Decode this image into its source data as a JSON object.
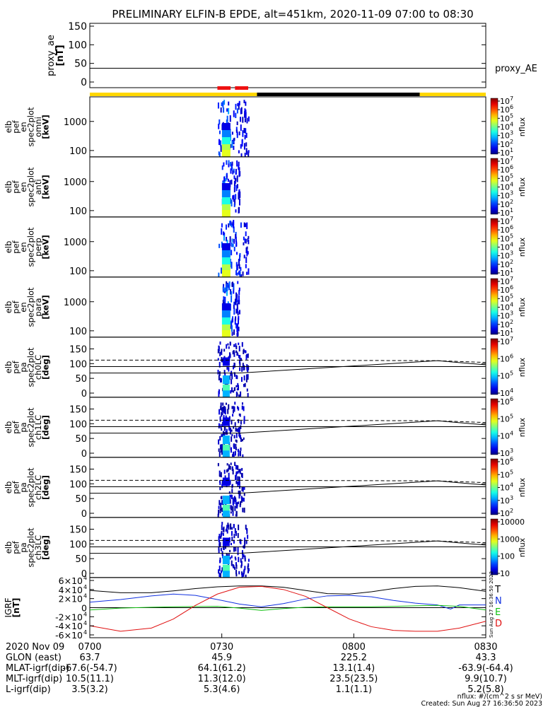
{
  "title": "PRELIMINARY ELFIN-B EPDE, alt=451km, 2020-11-09 07:00 to 08:30",
  "colors": {
    "sunlight": "#ffd700",
    "eclipse": "#000000",
    "science_zone": "#ee1111",
    "trace_T": "#000000",
    "trace_N": "#1030e0",
    "trace_E": "#10c010",
    "trace_D": "#e01010"
  },
  "chart_data": [
    {
      "type": "line",
      "id": "proxy_ae",
      "ylabel": "proxy_ae [nT]",
      "ylim": [
        0,
        150
      ],
      "yticks": [
        "0",
        "50",
        "100",
        "150"
      ],
      "series": [
        {
          "name": "proxy_AE",
          "x": [
            "07:00",
            "08:30"
          ],
          "values": [
            37,
            37
          ]
        }
      ]
    },
    {
      "type": "heatmap",
      "id": "en_omni",
      "ylabel": [
        "elb",
        "pef",
        "en",
        "spec2plot",
        "omni",
        "[keV]"
      ],
      "yscale": "log",
      "ylim": [
        60,
        7000
      ],
      "yticks": [
        "100",
        "1000"
      ],
      "colorbar": {
        "label": "nflux",
        "ticks": [
          "10",
          "10",
          "10",
          "10",
          "10",
          "10",
          "10"
        ],
        "exponents": [
          "1",
          "2",
          "3",
          "4",
          "5",
          "6",
          "7"
        ]
      },
      "activity": [
        {
          "start": "07:29",
          "end": "07:36",
          "peak": "07:31"
        }
      ]
    },
    {
      "type": "heatmap",
      "id": "en_anti",
      "ylabel": [
        "elb",
        "pef",
        "en",
        "spec2plot",
        "anti",
        "[keV]"
      ],
      "yscale": "log",
      "ylim": [
        60,
        7000
      ],
      "yticks": [
        "100",
        "1000"
      ],
      "colorbar": {
        "label": "nflux",
        "ticks": [
          "10",
          "10",
          "10",
          "10",
          "10",
          "10",
          "10"
        ],
        "exponents": [
          "1",
          "2",
          "3",
          "4",
          "5",
          "6",
          "7"
        ]
      },
      "activity": [
        {
          "start": "07:30",
          "end": "07:34",
          "peak": "07:31"
        }
      ]
    },
    {
      "type": "heatmap",
      "id": "en_perp",
      "ylabel": [
        "elb",
        "pef",
        "en",
        "spec2plot",
        "perp",
        "[keV]"
      ],
      "yscale": "log",
      "ylim": [
        60,
        7000
      ],
      "yticks": [
        "100",
        "1000"
      ],
      "colorbar": {
        "label": "nflux",
        "ticks": [
          "10",
          "10",
          "10",
          "10",
          "10",
          "10",
          "10"
        ],
        "exponents": [
          "1",
          "2",
          "3",
          "4",
          "5",
          "6",
          "7"
        ]
      },
      "activity": [
        {
          "start": "07:29",
          "end": "07:36",
          "peak": "07:31"
        }
      ]
    },
    {
      "type": "heatmap",
      "id": "en_para",
      "ylabel": [
        "elb",
        "pef",
        "en",
        "spec2plot",
        "para",
        "[keV]"
      ],
      "yscale": "log",
      "ylim": [
        60,
        7000
      ],
      "yticks": [
        "100",
        "1000"
      ],
      "colorbar": {
        "label": "nflux",
        "ticks": [
          "10",
          "10",
          "10",
          "10",
          "10",
          "10",
          "10"
        ],
        "exponents": [
          "1",
          "2",
          "3",
          "4",
          "5",
          "6",
          "7"
        ]
      },
      "activity": [
        {
          "start": "07:30",
          "end": "07:34",
          "peak": "07:31"
        }
      ]
    },
    {
      "type": "heatmap",
      "id": "ch0LC",
      "ylabel": [
        "elb",
        "pef",
        "pa",
        "spec2plot",
        "ch0LC",
        "[deg]"
      ],
      "ylim": [
        0,
        180
      ],
      "yticks": [
        "0",
        "50",
        "100",
        "150"
      ],
      "lines": {
        "solid": [
          [
            "07:34",
            68
          ],
          [
            "08:19",
            110
          ],
          [
            "08:30",
            96
          ]
        ],
        "dashed": [
          [
            "07:34",
            112
          ],
          [
            "08:19",
            110
          ],
          [
            "08:30",
            104
          ]
        ],
        "flat": [
          90
        ]
      },
      "colorbar": {
        "label": "nflux",
        "ticks": [
          "10",
          "10",
          "10",
          "10"
        ],
        "exponents": [
          "4",
          "5",
          "6",
          "7"
        ]
      },
      "activity": [
        {
          "start": "07:29",
          "end": "07:36",
          "peak": "07:31"
        }
      ]
    },
    {
      "type": "heatmap",
      "id": "ch1LC",
      "ylabel": [
        "elb",
        "pef",
        "pa",
        "spec2plot",
        "ch1LC",
        "[deg]"
      ],
      "ylim": [
        0,
        180
      ],
      "yticks": [
        "0",
        "50",
        "100",
        "150"
      ],
      "lines": {
        "solid": [
          [
            "07:34",
            68
          ],
          [
            "08:19",
            110
          ],
          [
            "08:30",
            96
          ]
        ],
        "dashed": [
          [
            "07:34",
            112
          ],
          [
            "08:19",
            110
          ],
          [
            "08:30",
            104
          ]
        ],
        "flat": [
          90
        ]
      },
      "colorbar": {
        "label": "nflux",
        "ticks": [
          "10",
          "10",
          "10",
          "10"
        ],
        "exponents": [
          "3",
          "4",
          "5",
          "6"
        ]
      },
      "activity": [
        {
          "start": "07:29",
          "end": "07:35",
          "peak": "07:31"
        }
      ]
    },
    {
      "type": "heatmap",
      "id": "ch2LC",
      "ylabel": [
        "elb",
        "pef",
        "pa",
        "spec2plot",
        "ch2LC",
        "[deg]"
      ],
      "ylim": [
        0,
        180
      ],
      "yticks": [
        "0",
        "50",
        "100",
        "150"
      ],
      "lines": {
        "solid": [
          [
            "07:34",
            68
          ],
          [
            "08:19",
            110
          ],
          [
            "08:30",
            96
          ]
        ],
        "dashed": [
          [
            "07:34",
            112
          ],
          [
            "08:19",
            110
          ],
          [
            "08:30",
            104
          ]
        ],
        "flat": [
          90
        ]
      },
      "colorbar": {
        "label": "nflux",
        "ticks": [
          "10",
          "10",
          "10",
          "10",
          "10"
        ],
        "exponents": [
          "2",
          "3",
          "4",
          "5",
          "6"
        ]
      },
      "activity": [
        {
          "start": "07:29",
          "end": "07:35",
          "peak": "07:31"
        }
      ]
    },
    {
      "type": "heatmap",
      "id": "ch3LC",
      "ylabel": [
        "elb",
        "pef",
        "pa",
        "spec2plot",
        "ch3LC",
        "[deg]"
      ],
      "ylim": [
        0,
        180
      ],
      "yticks": [
        "0",
        "50",
        "100",
        "150"
      ],
      "lines": {
        "solid": [
          [
            "07:34",
            68
          ],
          [
            "08:19",
            110
          ],
          [
            "08:30",
            96
          ]
        ],
        "dashed": [
          [
            "07:34",
            112
          ],
          [
            "08:19",
            110
          ],
          [
            "08:30",
            104
          ]
        ],
        "flat": [
          90
        ]
      },
      "colorbar": {
        "label": "nflux",
        "ticks": [
          "10",
          "100",
          "1000",
          "10000"
        ]
      },
      "activity": [
        {
          "start": "07:29",
          "end": "07:36",
          "peak": "07:31"
        }
      ]
    },
    {
      "type": "line",
      "id": "igrf",
      "ylabel": [
        "IGRF",
        "[nT]"
      ],
      "ylim": [
        -60000,
        60000
      ],
      "yticks": [
        {
          "m": "-6",
          "e": "4"
        },
        {
          "m": "-4",
          "e": "4"
        },
        {
          "m": "-2",
          "e": "4"
        },
        {
          "m": "0",
          "e": ""
        },
        {
          "m": "2",
          "e": "4"
        },
        {
          "m": "4",
          "e": "4"
        },
        {
          "m": "6",
          "e": "4"
        }
      ],
      "series": [
        {
          "name": "T",
          "x": [
            "07:00",
            "07:07",
            "07:14",
            "07:19",
            "07:24",
            "07:29",
            "07:34",
            "07:39",
            "07:44",
            "07:49",
            "07:54",
            "07:59",
            "08:04",
            "08:09",
            "08:14",
            "08:19",
            "08:24",
            "08:30"
          ],
          "values": [
            38000,
            33000,
            33000,
            37000,
            42000,
            46000,
            48000,
            48000,
            45000,
            38000,
            31000,
            30000,
            35000,
            42000,
            47000,
            48000,
            44000,
            36000
          ]
        },
        {
          "name": "N",
          "x": [
            "07:00",
            "07:07",
            "07:14",
            "07:19",
            "07:24",
            "07:29",
            "07:34",
            "07:39",
            "07:44",
            "07:49",
            "07:54",
            "07:59",
            "08:04",
            "08:09",
            "08:14",
            "08:19",
            "08:22",
            "08:24",
            "08:30"
          ],
          "values": [
            12000,
            18000,
            26000,
            30000,
            27000,
            18000,
            8000,
            2000,
            9000,
            19000,
            26000,
            27000,
            24000,
            16000,
            10000,
            6000,
            -3000,
            6000,
            6000
          ]
        },
        {
          "name": "E",
          "x": [
            "07:00",
            "07:07",
            "07:14",
            "07:19",
            "07:24",
            "07:29",
            "07:34",
            "07:39",
            "07:44",
            "07:49",
            "07:54",
            "07:59",
            "08:04",
            "08:09",
            "08:14",
            "08:19",
            "08:24",
            "08:30"
          ],
          "values": [
            -5000,
            -1000,
            1000,
            2000,
            2500,
            3000,
            -1000,
            -6000,
            -2000,
            1000,
            2000,
            2000,
            2000,
            3000,
            4000,
            5000,
            3000,
            -5000
          ]
        },
        {
          "name": "D",
          "x": [
            "07:00",
            "07:07",
            "07:14",
            "07:19",
            "07:24",
            "07:29",
            "07:34",
            "07:39",
            "07:44",
            "07:49",
            "07:54",
            "07:59",
            "08:04",
            "08:09",
            "08:14",
            "08:19",
            "08:24",
            "08:30"
          ],
          "values": [
            -40000,
            -52000,
            -45000,
            -25000,
            5000,
            30000,
            45000,
            47000,
            40000,
            25000,
            0,
            -25000,
            -42000,
            -50000,
            -52000,
            -52000,
            -45000,
            -30000
          ]
        }
      ]
    }
  ],
  "bars": {
    "sunlight_eclipse": [
      {
        "start": "07:00",
        "end": "07:38",
        "state": "sunlight"
      },
      {
        "start": "07:38",
        "end": "08:15",
        "state": "eclipse"
      },
      {
        "start": "08:15",
        "end": "08:30",
        "state": "sunlight"
      }
    ],
    "science_zones": [
      {
        "start": "07:29",
        "end": "07:32"
      },
      {
        "start": "07:33",
        "end": "07:34"
      },
      {
        "start": "07:34",
        "end": "07:36"
      }
    ]
  },
  "side_labels": {
    "proxy": "proxy_AE",
    "igrf": [
      "T",
      "N",
      "E",
      "D"
    ],
    "created_vertical": "Sun Aug 27 16:36:50 2023"
  },
  "xaxis": {
    "date": "2020 Nov 09",
    "ticks": [
      "0700",
      "0730",
      "0800",
      "0830"
    ],
    "rows": [
      {
        "label": "GLON (east)",
        "values": [
          "63.7",
          "45.9",
          "225.2",
          "43.3"
        ]
      },
      {
        "label": "MLAT-igrf(dip)",
        "values": [
          "-67.6(-54.7)",
          "64.1(61.2)",
          "13.1(1.4)",
          "-63.9(-64.4)"
        ]
      },
      {
        "label": "MLT-igrf(dip)",
        "values": [
          "10.5(11.1)",
          "11.3(12.0)",
          "23.5(23.5)",
          "9.9(10.7)"
        ]
      },
      {
        "label": "L-igrf(dip)",
        "values": [
          "3.5(3.2)",
          "5.3(4.6)",
          "1.1(1.1)",
          "5.2(5.8)"
        ]
      }
    ]
  },
  "footer": {
    "units": "nflux: #/(cm^2 s sr MeV)",
    "created": "Created: Sun Aug 27 16:36:50 2023"
  }
}
